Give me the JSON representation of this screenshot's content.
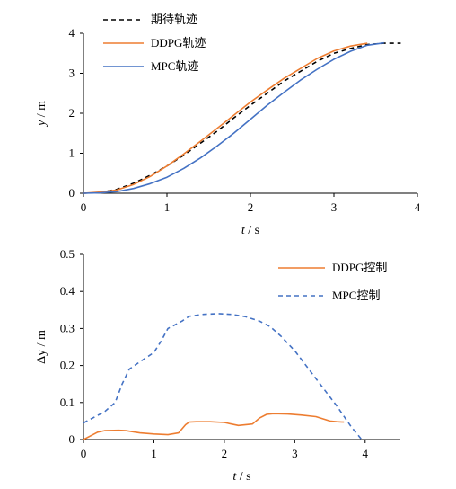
{
  "chart_data": [
    {
      "type": "line",
      "xlabel_var": "t",
      "xlabel_unit": " / s",
      "ylabel_var": "y",
      "ylabel_unit": " / m",
      "xlim": [
        0,
        4
      ],
      "ylim": [
        0,
        4
      ],
      "xticks": [
        "0",
        "1",
        "2",
        "3",
        "4"
      ],
      "yticks": [
        "0",
        "1",
        "2",
        "3",
        "4"
      ],
      "grid": false,
      "legend_placement": "top-left",
      "series": [
        {
          "name": "期待轨迹",
          "style": "dashed",
          "color": "#000000",
          "x": [
            0,
            0.2,
            0.4,
            0.6,
            0.8,
            1.0,
            1.2,
            1.4,
            1.6,
            1.8,
            2.0,
            2.2,
            2.4,
            2.6,
            2.8,
            3.0,
            3.2,
            3.4,
            3.6,
            3.8
          ],
          "y": [
            0,
            0.02,
            0.1,
            0.25,
            0.45,
            0.68,
            0.95,
            1.25,
            1.55,
            1.88,
            2.2,
            2.5,
            2.8,
            3.05,
            3.3,
            3.5,
            3.62,
            3.72,
            3.75,
            3.75
          ]
        },
        {
          "name": "DDPG轨迹",
          "style": "solid",
          "color": "#ED7D31",
          "x": [
            0,
            0.2,
            0.4,
            0.6,
            0.8,
            1.0,
            1.2,
            1.4,
            1.6,
            1.8,
            2.0,
            2.2,
            2.4,
            2.6,
            2.8,
            3.0,
            3.2,
            3.4
          ],
          "y": [
            0,
            0.03,
            0.08,
            0.22,
            0.42,
            0.68,
            0.98,
            1.3,
            1.62,
            1.95,
            2.28,
            2.58,
            2.87,
            3.12,
            3.37,
            3.56,
            3.68,
            3.75
          ]
        },
        {
          "name": "MPC轨迹",
          "style": "solid",
          "color": "#4472C4",
          "x": [
            0,
            0.2,
            0.4,
            0.6,
            0.8,
            1.0,
            1.2,
            1.4,
            1.6,
            1.8,
            2.0,
            2.2,
            2.4,
            2.6,
            2.8,
            3.0,
            3.2,
            3.4,
            3.6
          ],
          "y": [
            0,
            0.01,
            0.04,
            0.12,
            0.24,
            0.4,
            0.62,
            0.88,
            1.18,
            1.5,
            1.85,
            2.2,
            2.52,
            2.83,
            3.1,
            3.35,
            3.55,
            3.7,
            3.76
          ]
        }
      ]
    },
    {
      "type": "line",
      "xlabel_var": "t",
      "xlabel_unit": " / s",
      "ylabel": "Δy / m",
      "xlim": [
        0,
        4.5
      ],
      "ylim": [
        0,
        0.5
      ],
      "xticks": [
        "0",
        "1",
        "2",
        "3",
        "4"
      ],
      "xtick_values": [
        0,
        1,
        2,
        3,
        4
      ],
      "yticks": [
        "0",
        "0.1",
        "0.2",
        "0.3",
        "0.4",
        "0.5"
      ],
      "grid": false,
      "legend_placement": "top-right",
      "series": [
        {
          "name": "DDPG控制",
          "style": "solid",
          "color": "#ED7D31",
          "x": [
            0,
            0.1,
            0.2,
            0.3,
            0.5,
            0.6,
            0.8,
            1.0,
            1.2,
            1.35,
            1.45,
            1.5,
            1.6,
            1.8,
            2.0,
            2.1,
            2.2,
            2.4,
            2.5,
            2.6,
            2.7,
            2.9,
            3.1,
            3.3,
            3.5,
            3.6,
            3.7
          ],
          "y": [
            0,
            0.01,
            0.02,
            0.024,
            0.025,
            0.024,
            0.018,
            0.015,
            0.013,
            0.018,
            0.04,
            0.047,
            0.048,
            0.048,
            0.046,
            0.042,
            0.038,
            0.042,
            0.058,
            0.068,
            0.07,
            0.069,
            0.066,
            0.062,
            0.05,
            0.048,
            0.047
          ]
        },
        {
          "name": "MPC控制",
          "style": "dashed",
          "color": "#4472C4",
          "x": [
            0,
            0.1,
            0.3,
            0.45,
            0.55,
            0.65,
            0.8,
            1.0,
            1.1,
            1.2,
            1.3,
            1.4,
            1.5,
            1.7,
            1.9,
            2.1,
            2.3,
            2.5,
            2.65,
            2.8,
            3.0,
            3.2,
            3.4,
            3.6,
            3.8,
            3.95
          ],
          "y": [
            0.045,
            0.055,
            0.075,
            0.1,
            0.15,
            0.19,
            0.21,
            0.235,
            0.265,
            0.3,
            0.31,
            0.32,
            0.333,
            0.338,
            0.34,
            0.338,
            0.332,
            0.32,
            0.305,
            0.28,
            0.24,
            0.19,
            0.14,
            0.09,
            0.035,
            0.0
          ]
        }
      ]
    }
  ]
}
